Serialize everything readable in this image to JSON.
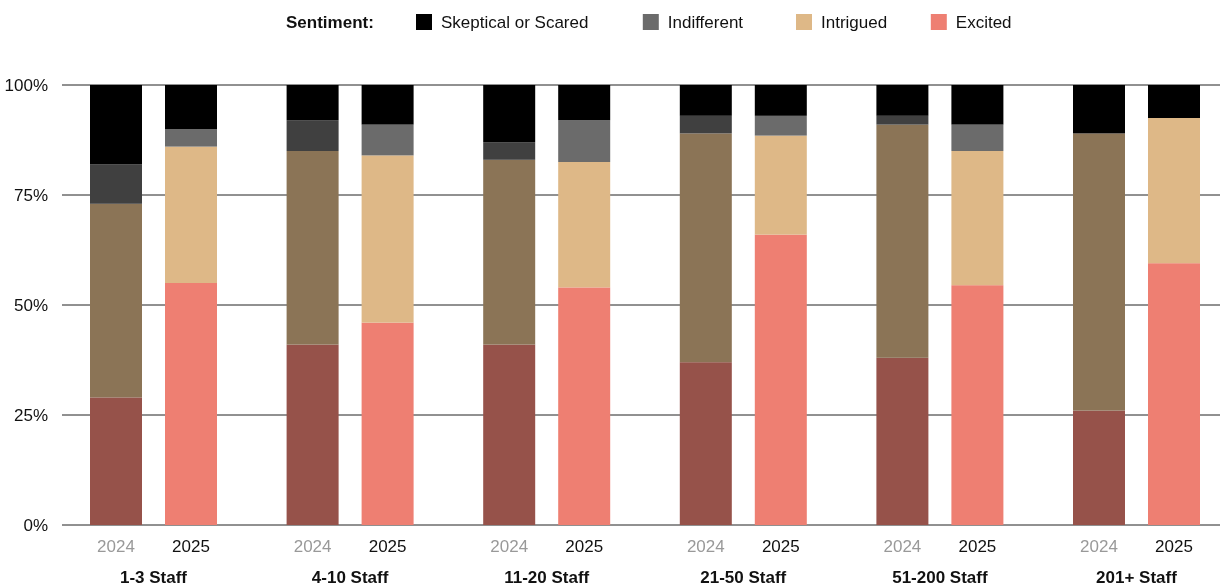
{
  "chart_data": {
    "type": "bar",
    "stacked": true,
    "legend_title": "Sentiment:",
    "legend": "top",
    "grid": "y",
    "categories": [
      "2024",
      "2025",
      "2024",
      "2025",
      "2024",
      "2025",
      "2024",
      "2025",
      "2024",
      "2025",
      "2024",
      "2025"
    ],
    "annotations": [
      "1-3 Staff",
      "4-10 Staff",
      "11-20 Staff",
      "21-50 Staff",
      "51-200 Staff",
      "201+ Staff"
    ],
    "ylim": [
      0,
      100
    ],
    "yticks": [
      {
        "value": 0,
        "label": "0%"
      },
      {
        "value": 25,
        "label": "25%"
      },
      {
        "value": 50,
        "label": "50%"
      },
      {
        "value": 75,
        "label": "75%"
      },
      {
        "value": 100,
        "label": "100%"
      }
    ],
    "series": [
      {
        "name": "Excited",
        "color": "#ee7f72",
        "colors": [
          "#96524a",
          "#ee7f72",
          "#96524a",
          "#ee7f72",
          "#96524a",
          "#ee7f72",
          "#96524a",
          "#ee7f72",
          "#96524a",
          "#ee7f72",
          "#96524a",
          "#ee7f72"
        ],
        "values": [
          29,
          55,
          41,
          46,
          41,
          54,
          37,
          66,
          38,
          54.5,
          26,
          59.5
        ]
      },
      {
        "name": "Intrigued",
        "color": "#deb887",
        "colors": [
          "#8b7456",
          "#deb887",
          "#8b7456",
          "#deb887",
          "#8b7456",
          "#deb887",
          "#8b7456",
          "#deb887",
          "#8b7456",
          "#deb887",
          "#8b7456",
          "#deb887"
        ],
        "values": [
          44,
          31,
          44,
          38,
          42,
          28.5,
          52,
          22.5,
          53,
          30.5,
          63,
          33
        ]
      },
      {
        "name": "Indifferent",
        "color": "#6b6b6b",
        "colors": [
          "#404040",
          "#6b6b6b",
          "#404040",
          "#6b6b6b",
          "#404040",
          "#6b6b6b",
          "#404040",
          "#6b6b6b",
          "#404040",
          "#6b6b6b",
          "#404040",
          "#6b6b6b"
        ],
        "values": [
          9,
          4,
          7,
          7,
          4,
          9.5,
          4,
          4.5,
          2,
          6,
          0,
          0
        ]
      },
      {
        "name": "Skeptical or Scared",
        "color": "#000000",
        "colors": [
          "#000000",
          "#000000",
          "#000000",
          "#000000",
          "#000000",
          "#000000",
          "#000000",
          "#000000",
          "#000000",
          "#000000",
          "#000000",
          "#000000"
        ],
        "values": [
          18,
          10,
          8,
          9,
          13,
          8,
          7,
          7,
          7,
          9,
          11,
          7.5
        ]
      }
    ]
  }
}
